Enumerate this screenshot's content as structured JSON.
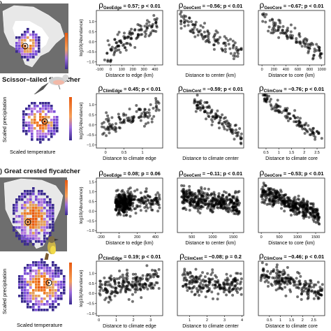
{
  "figure": {
    "species": [
      {
        "name": "Scissor–tailed flycatcher",
        "panel_letter": ")",
        "geo_map": {
          "colors": [
            "#3b2b8f",
            "#7b4fd6",
            "#b77be0",
            "#e6a15a",
            "#f07820",
            "#e85a10"
          ]
        },
        "clim_map": {
          "xlabel": "Scaled temperature",
          "ylabel": "Scaled precipitation",
          "colors": [
            "#3b2b8f",
            "#7b4fd6",
            "#b77be0",
            "#e6a15a",
            "#f07820",
            "#e85a10"
          ]
        }
      },
      {
        "name": "Great crested flycatcher",
        "panel_letter": ")",
        "geo_map": {
          "colors": [
            "#3b2b8f",
            "#7b4fd6",
            "#b77be0",
            "#e6a15a",
            "#f07820",
            "#e85a10"
          ]
        },
        "clim_map": {
          "xlabel": "Scaled temperature",
          "ylabel": "Scaled precipitation",
          "colors": [
            "#3b2b8f",
            "#7b4fd6",
            "#b77be0",
            "#e6a15a",
            "#f07820",
            "#e85a10"
          ]
        }
      }
    ]
  },
  "chart_data": [
    {
      "type": "scatter",
      "rho_sym": "ρ",
      "rho_sub": "GeoEdge",
      "stat": " = 0.57; p < 0.01",
      "xlabel": "Distance to edge (km)",
      "ylabel": "log10(Abundance)",
      "xlim": [
        -130,
        470
      ],
      "ylim": [
        -1.15,
        1.55
      ],
      "xticks": [
        -100,
        0,
        100,
        200,
        300,
        400
      ],
      "yticks": [
        -1.0,
        -0.5,
        0.0,
        0.5,
        1.0
      ],
      "yticklabels": [
        "−1.0",
        "−0.5",
        "0.0",
        "0.5",
        "1.0"
      ],
      "n": 110,
      "seed": 11,
      "px": [
        -60,
        420
      ],
      "line_y": [
        -0.5,
        0.9
      ],
      "noise": 0.45,
      "x_cluster": 0,
      "extra_low": 4
    },
    {
      "type": "scatter",
      "rho_sym": "ρ",
      "rho_sub": "GeoCent",
      "stat": " = −0.56; p < 0.01",
      "xlabel": "Distance to center (km)",
      "ylabel": "",
      "xlim": [
        0,
        1000
      ],
      "ylim": [
        -1.15,
        1.55
      ],
      "xticks": [],
      "yticks": [],
      "yticklabels": [],
      "n": 110,
      "seed": 12,
      "px": [
        40,
        980
      ],
      "line_y": [
        1.1,
        -0.6
      ],
      "noise": 0.4,
      "x_cluster": 0,
      "extra_low": 0
    },
    {
      "type": "scatter",
      "rho_sym": "ρ",
      "rho_sub": "GeoCore",
      "stat": " = −0.67; p < 0.01",
      "xlabel": "Distance to core (km)",
      "ylabel": "",
      "xlim": [
        -60,
        1050
      ],
      "ylim": [
        -1.15,
        1.55
      ],
      "xticks": [
        0,
        200,
        400,
        600,
        800,
        1000
      ],
      "yticks": [],
      "yticklabels": [],
      "n": 110,
      "seed": 13,
      "px": [
        0,
        1000
      ],
      "line_y": [
        1.2,
        -0.6
      ],
      "noise": 0.35,
      "x_cluster": 0,
      "extra_low": 0
    },
    {
      "type": "scatter",
      "rho_sym": "ρ",
      "rho_sub": "ClimEdge",
      "stat": " = 0.45; p < 0.01",
      "xlabel": "Distance to climate edge",
      "ylabel": "log10(Abundance)",
      "xlim": [
        -0.25,
        1.55
      ],
      "ylim": [
        -1.15,
        1.55
      ],
      "xticks": [
        0.0,
        0.5,
        1.0
      ],
      "yticks": [
        -1.0,
        -0.5,
        0.0,
        0.5,
        1.0
      ],
      "yticklabels": [
        "−1.0",
        "−0.5",
        "0.0",
        "0.5",
        "1.0"
      ],
      "n": 110,
      "seed": 21,
      "px": [
        -0.1,
        1.45
      ],
      "line_y": [
        -0.2,
        0.9
      ],
      "noise": 0.5,
      "x_cluster": 0,
      "extra_low": 0
    },
    {
      "type": "scatter",
      "rho_sym": "ρ",
      "rho_sub": "ClimCent",
      "stat": " = −0.59; p < 0.01",
      "xlabel": "Distance to climate center",
      "ylabel": "",
      "xlim": [
        0,
        1
      ],
      "ylim": [
        -1.15,
        1.55
      ],
      "xticks": [],
      "yticks": [],
      "yticklabels": [],
      "n": 110,
      "seed": 22,
      "px": [
        0.25,
        0.97
      ],
      "line_y": [
        1.2,
        -0.6
      ],
      "noise": 0.35,
      "x_cluster": 0,
      "extra_low": 0
    },
    {
      "type": "scatter",
      "rho_sym": "ρ",
      "rho_sub": "ClimCore",
      "stat": " = −0.76; p < 0.01",
      "xlabel": "Distance to climate core",
      "ylabel": "",
      "xlim": [
        0.2,
        2.8
      ],
      "ylim": [
        -1.15,
        1.55
      ],
      "xticks": [
        0.5,
        1.0,
        1.5,
        2.0,
        2.5
      ],
      "yticks": [],
      "yticklabels": [],
      "n": 110,
      "seed": 23,
      "px": [
        0.35,
        2.7
      ],
      "line_y": [
        1.45,
        -0.7
      ],
      "noise": 0.3,
      "x_cluster": 0,
      "extra_low": 0
    },
    {
      "type": "scatter",
      "rho_sym": "ρ",
      "rho_sub": "GeoEdge",
      "stat": " = 0.08; p = 0.06",
      "xlabel": "Distance to edge (km)",
      "ylabel": "log10(Abundance)",
      "xlim": [
        -250,
        480
      ],
      "ylim": [
        -1.1,
        1.7
      ],
      "xticks": [
        -200,
        0,
        200,
        400
      ],
      "yticks": [
        -1.0,
        -0.5,
        0.0,
        0.5,
        1.0,
        1.5
      ],
      "yticklabels": [
        "−1.0",
        "−0.5",
        "0.0",
        "0.5",
        "1.0",
        "1.5"
      ],
      "n": 380,
      "seed": 31,
      "px": [
        -40,
        450
      ],
      "line_y": [
        0.4,
        0.55
      ],
      "noise": 0.45,
      "x_cluster": 1,
      "extra_low": 0
    },
    {
      "type": "scatter",
      "rho_sym": "ρ",
      "rho_sub": "GeoCent",
      "stat": " = −0.11; p < 0.01",
      "xlabel": "Distance to center (km)",
      "ylabel": "",
      "xlim": [
        150,
        1750
      ],
      "ylim": [
        -1.1,
        1.7
      ],
      "xticks": [
        500,
        1000,
        1500
      ],
      "yticks": [],
      "yticklabels": [],
      "n": 380,
      "seed": 32,
      "px": [
        250,
        1650
      ],
      "line_y": [
        0.65,
        0.35
      ],
      "noise": 0.45,
      "x_cluster": 0,
      "extra_low": 0
    },
    {
      "type": "scatter",
      "rho_sym": "ρ",
      "rho_sub": "GeoCore",
      "stat": " = −0.53; p < 0.01",
      "xlabel": "Distance to core (km)",
      "ylabel": "",
      "xlim": [
        -80,
        1750
      ],
      "ylim": [
        -1.1,
        1.7
      ],
      "xticks": [
        0,
        500,
        1000,
        1500
      ],
      "yticks": [],
      "yticklabels": [],
      "n": 380,
      "seed": 33,
      "px": [
        0,
        1600
      ],
      "line_y": [
        1.0,
        -0.2
      ],
      "noise": 0.4,
      "x_cluster": 0,
      "extra_low": 0
    },
    {
      "type": "scatter",
      "rho_sym": "ρ",
      "rho_sub": "ClimEdge",
      "stat": " = 0.19; p < 0.01",
      "xlabel": "Distance to climate edge",
      "ylabel": "log10(Abundance)",
      "xlim": [
        -0.15,
        3.7
      ],
      "ylim": [
        -1.1,
        1.6
      ],
      "xticks": [
        0,
        1,
        2,
        3
      ],
      "yticks": [
        -1.0,
        -0.5,
        0.0,
        0.5,
        1.0
      ],
      "yticklabels": [
        "−1.0",
        "−0.5",
        "0.0",
        "0.5",
        "1.0"
      ],
      "n": 200,
      "seed": 41,
      "px": [
        0.0,
        3.5
      ],
      "line_y": [
        0.25,
        0.65
      ],
      "noise": 0.5,
      "x_cluster": 0,
      "extra_low": 0
    },
    {
      "type": "scatter",
      "rho_sym": "ρ",
      "rho_sub": "ClimCent",
      "stat": " = −0.08; p = 0.2",
      "xlabel": "Distance to climate center",
      "ylabel": "",
      "xlim": [
        0.3,
        4.1
      ],
      "ylim": [
        -1.1,
        1.6
      ],
      "xticks": [
        1,
        2,
        3,
        4
      ],
      "yticks": [],
      "yticklabels": [],
      "n": 200,
      "seed": 42,
      "px": [
        0.6,
        4.0
      ],
      "line_y": [
        0.55,
        0.35
      ],
      "noise": 0.5,
      "x_cluster": 0,
      "extra_low": 0
    },
    {
      "type": "scatter",
      "rho_sym": "ρ",
      "rho_sub": "ClimCore",
      "stat": " = −0.46; p < 0.01",
      "xlabel": "Distance to climate core",
      "ylabel": "",
      "xlim": [
        0,
        3.0
      ],
      "ylim": [
        -1.1,
        1.6
      ],
      "xticks": [
        0.5,
        1.0,
        1.5,
        2.0,
        2.5
      ],
      "yticks": [],
      "yticklabels": [],
      "n": 200,
      "seed": 43,
      "px": [
        0.1,
        2.9
      ],
      "line_y": [
        0.95,
        0.1
      ],
      "noise": 0.45,
      "x_cluster": 0,
      "extra_low": 0
    }
  ]
}
